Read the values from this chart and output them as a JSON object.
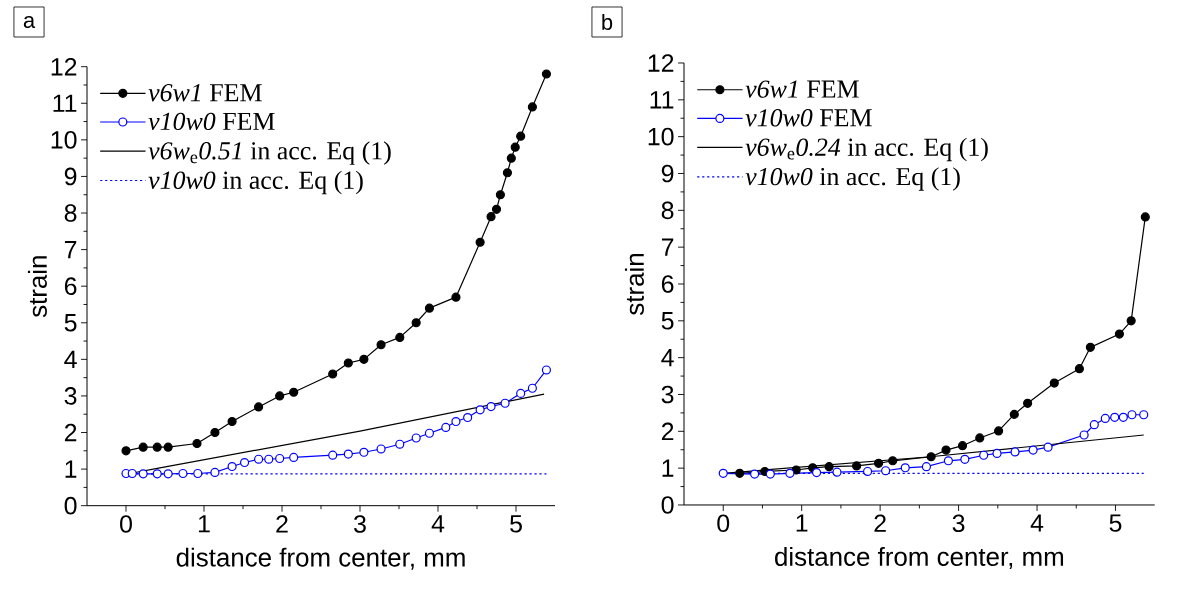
{
  "chart_data": [
    {
      "type": "line",
      "title": "a",
      "xlabel": "distance from center, mm",
      "ylabel": "strain",
      "xlim": [
        -0.5,
        5.5
      ],
      "ylim": [
        0,
        12
      ],
      "xticks": [
        0,
        1,
        2,
        3,
        4,
        5
      ],
      "yticks": [
        0,
        1,
        2,
        3,
        4,
        5,
        6,
        7,
        8,
        9,
        10,
        11,
        12
      ],
      "legend": "top left",
      "series": [
        {
          "name": "*v6w1* FEM",
          "color": "#000000",
          "marker": "circle",
          "line_style": "solid",
          "x": [
            0,
            0.22,
            0.4,
            0.54,
            0.91,
            1.14,
            1.36,
            1.7,
            1.97,
            2.15,
            2.65,
            2.85,
            3.05,
            3.27,
            3.51,
            3.72,
            3.89,
            4.23,
            4.54,
            4.68,
            4.75,
            4.8,
            4.89,
            4.94,
            4.99,
            5.06,
            5.21,
            5.39
          ],
          "values": [
            1.5,
            1.6,
            1.6,
            1.6,
            1.7,
            2.0,
            2.3,
            2.7,
            3.0,
            3.1,
            3.6,
            3.9,
            4.0,
            4.4,
            4.6,
            5.0,
            5.4,
            5.7,
            7.2,
            7.9,
            8.1,
            8.5,
            9.1,
            9.5,
            9.8,
            10.1,
            10.9,
            11.8
          ]
        },
        {
          "name": "*v10w0* FEM",
          "color": "#0000ff",
          "marker": "circle",
          "line_style": "solid",
          "x": [
            0,
            0.08,
            0.22,
            0.4,
            0.54,
            0.73,
            0.92,
            1.14,
            1.36,
            1.52,
            1.7,
            1.83,
            1.97,
            2.15,
            2.65,
            2.85,
            3.05,
            3.27,
            3.51,
            3.72,
            3.89,
            4.1,
            4.23,
            4.38,
            4.54,
            4.68,
            4.86,
            5.06,
            5.21,
            5.39
          ],
          "values": [
            0.88,
            0.88,
            0.87,
            0.87,
            0.87,
            0.88,
            0.88,
            0.91,
            1.07,
            1.18,
            1.27,
            1.27,
            1.29,
            1.32,
            1.38,
            1.41,
            1.46,
            1.55,
            1.68,
            1.85,
            1.98,
            2.14,
            2.3,
            2.41,
            2.62,
            2.71,
            2.8,
            3.07,
            3.21,
            3.71
          ]
        },
        {
          "name": "*v6w*$_{e}$*0.51* in acc. Eq (1)",
          "color": "#000000",
          "marker": "none",
          "line_style": "solid",
          "x": [
            0,
            0.4,
            3.0,
            5.36
          ],
          "values": [
            0.86,
            1.02,
            2.04,
            3.05
          ]
        },
        {
          "name": "*v10w0* in acc. Eq (1)",
          "color": "#0000ff",
          "marker": "none",
          "line_style": "dotted",
          "x": [
            0,
            5.39
          ],
          "values": [
            0.87,
            0.87
          ]
        }
      ]
    },
    {
      "type": "line",
      "title": "b",
      "xlabel": "distance from center, mm",
      "ylabel": "strain",
      "xlim": [
        -0.5,
        5.5
      ],
      "ylim": [
        0,
        12
      ],
      "xticks": [
        0,
        1,
        2,
        3,
        4,
        5
      ],
      "yticks": [
        0,
        1,
        2,
        3,
        4,
        5,
        6,
        7,
        8,
        9,
        10,
        11,
        12
      ],
      "legend": "top left",
      "series": [
        {
          "name": "*v6w1* FEM",
          "color": "#000000",
          "marker": "circle",
          "line_style": "solid",
          "x": [
            0.21,
            0.53,
            0.93,
            1.14,
            1.35,
            1.7,
            1.98,
            2.16,
            2.65,
            2.84,
            3.05,
            3.27,
            3.51,
            3.71,
            3.88,
            4.22,
            4.54,
            4.68,
            5.05,
            5.2,
            5.38
          ],
          "values": [
            0.86,
            0.91,
            0.95,
            1.01,
            1.04,
            1.06,
            1.13,
            1.2,
            1.31,
            1.49,
            1.61,
            1.82,
            2.01,
            2.46,
            2.76,
            3.31,
            3.7,
            4.28,
            4.64,
            5.0,
            7.82
          ]
        },
        {
          "name": "*v10w0* FEM",
          "color": "#0000ff",
          "marker": "circle",
          "line_style": "solid",
          "x": [
            0,
            0.4,
            0.6,
            0.85,
            1.19,
            1.45,
            1.84,
            2.07,
            2.32,
            2.59,
            2.87,
            3.08,
            3.32,
            3.49,
            3.72,
            3.95,
            4.14,
            4.6,
            4.73,
            4.87,
            4.99,
            5.1,
            5.21,
            5.36
          ],
          "values": [
            0.86,
            0.84,
            0.84,
            0.86,
            0.88,
            0.89,
            0.91,
            0.93,
            1.01,
            1.04,
            1.2,
            1.24,
            1.35,
            1.4,
            1.44,
            1.49,
            1.57,
            1.9,
            2.18,
            2.35,
            2.38,
            2.38,
            2.45,
            2.45
          ]
        },
        {
          "name": "*v6w*$_{e}$*0.24* in acc. Eq (1)",
          "color": "#000000",
          "marker": "none",
          "line_style": "solid",
          "x": [
            0,
            2.64,
            5.36
          ],
          "values": [
            0.86,
            1.31,
            1.9
          ]
        },
        {
          "name": "*v10w0* in acc. Eq (1)",
          "color": "#0000ff",
          "marker": "none",
          "line_style": "dotted",
          "x": [
            0,
            5.36
          ],
          "values": [
            0.86,
            0.86
          ]
        }
      ]
    }
  ]
}
